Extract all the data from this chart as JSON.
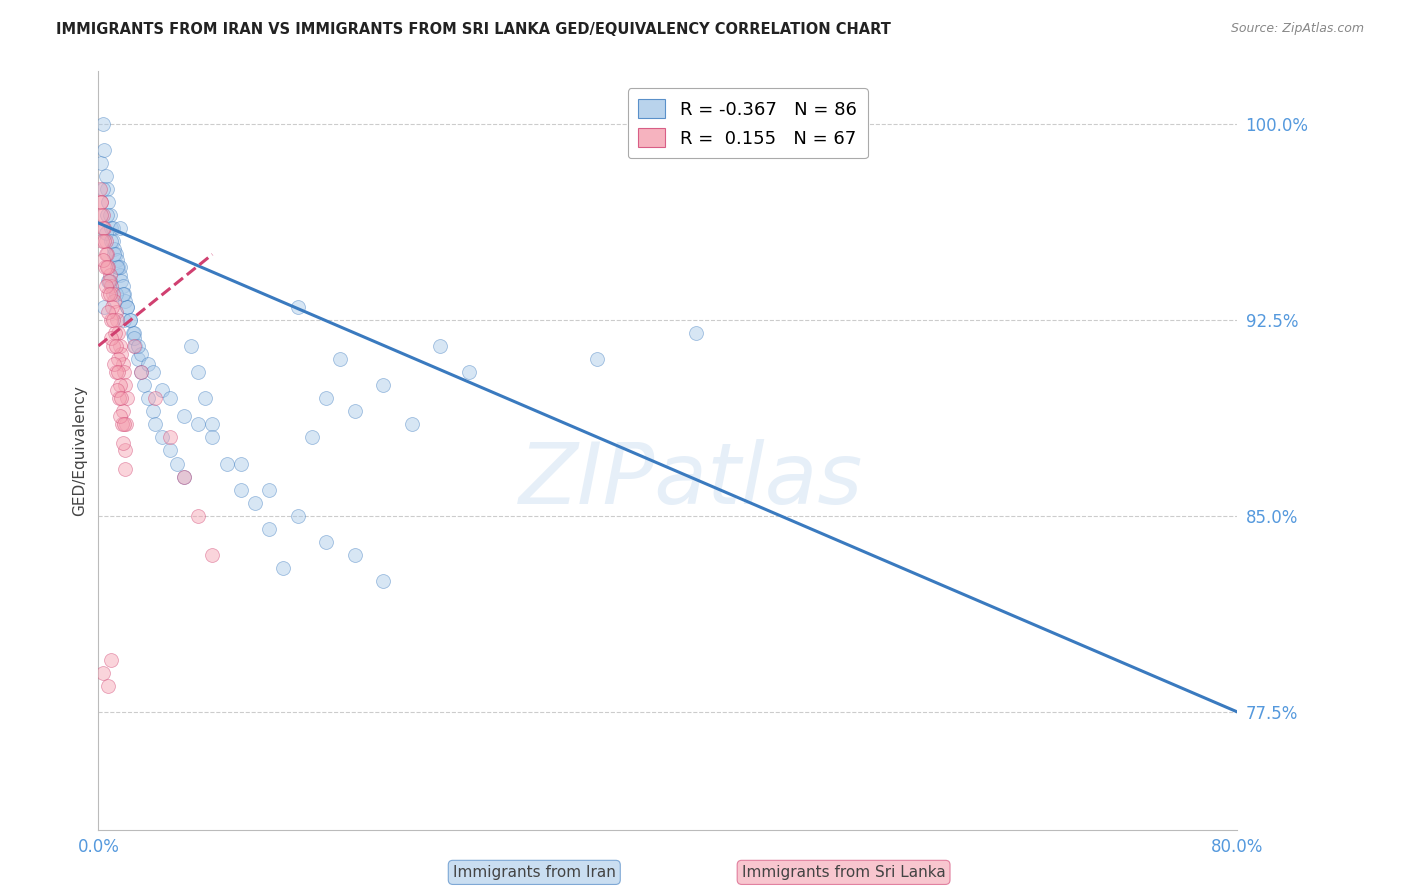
{
  "title": "IMMIGRANTS FROM IRAN VS IMMIGRANTS FROM SRI LANKA GED/EQUIVALENCY CORRELATION CHART",
  "source": "Source: ZipAtlas.com",
  "ylabel": "GED/Equivalency",
  "watermark": "ZIPatlas",
  "xlim": [
    0.0,
    80.0
  ],
  "ylim": [
    73.0,
    102.0
  ],
  "yticks": [
    77.5,
    85.0,
    92.5,
    100.0
  ],
  "ytick_labels": [
    "77.5%",
    "85.0%",
    "92.5%",
    "100.0%"
  ],
  "xticks": [
    0.0,
    10.0,
    20.0,
    30.0,
    40.0,
    50.0,
    60.0,
    70.0,
    80.0
  ],
  "xtick_labels": [
    "0.0%",
    "",
    "",
    "",
    "",
    "",
    "",
    "",
    "80.0%"
  ],
  "legend_iran_r": "-0.367",
  "legend_iran_n": "86",
  "legend_srilanka_r": "0.155",
  "legend_srilanka_n": "67",
  "color_iran": "#a8c8e8",
  "color_srilanka": "#f4a0b0",
  "color_trend_iran": "#3a7abf",
  "color_trend_srilanka": "#d04070",
  "iran_x": [
    0.2,
    0.3,
    0.4,
    0.5,
    0.6,
    0.7,
    0.8,
    0.9,
    1.0,
    1.1,
    1.2,
    1.3,
    1.4,
    1.5,
    1.6,
    1.7,
    1.8,
    1.9,
    2.0,
    2.2,
    2.4,
    2.6,
    2.8,
    3.0,
    3.2,
    3.5,
    3.8,
    4.0,
    4.5,
    5.0,
    5.5,
    6.0,
    6.5,
    7.0,
    7.5,
    8.0,
    9.0,
    10.0,
    11.0,
    12.0,
    13.0,
    14.0,
    15.0,
    16.0,
    17.0,
    18.0,
    20.0,
    22.0,
    24.0,
    26.0,
    1.0,
    1.5,
    2.0,
    2.5,
    3.0,
    0.5,
    0.8,
    1.2,
    1.8,
    2.5,
    3.5,
    4.5,
    6.0,
    8.0,
    10.0,
    12.0,
    14.0,
    16.0,
    18.0,
    20.0,
    0.3,
    0.6,
    0.9,
    1.3,
    1.7,
    2.2,
    2.8,
    3.8,
    5.0,
    7.0,
    35.0,
    42.0,
    0.4,
    0.7,
    1.1,
    1.5
  ],
  "iran_y": [
    98.5,
    100.0,
    99.0,
    98.0,
    97.5,
    97.0,
    96.5,
    96.0,
    95.5,
    95.2,
    95.0,
    94.8,
    94.5,
    94.2,
    94.0,
    93.8,
    93.5,
    93.2,
    93.0,
    92.5,
    92.0,
    91.5,
    91.0,
    90.5,
    90.0,
    89.5,
    89.0,
    88.5,
    88.0,
    87.5,
    87.0,
    86.5,
    91.5,
    90.5,
    89.5,
    88.5,
    87.0,
    86.0,
    85.5,
    84.5,
    83.0,
    93.0,
    88.0,
    89.5,
    91.0,
    89.0,
    90.0,
    88.5,
    91.5,
    90.5,
    96.0,
    94.5,
    93.0,
    92.0,
    91.2,
    95.8,
    94.0,
    93.5,
    92.5,
    91.8,
    90.8,
    89.8,
    88.8,
    88.0,
    87.0,
    86.0,
    85.0,
    84.0,
    83.5,
    82.5,
    97.5,
    96.5,
    95.5,
    94.5,
    93.5,
    92.5,
    91.5,
    90.5,
    89.5,
    88.5,
    91.0,
    92.0,
    93.0,
    94.0,
    95.0,
    96.0
  ],
  "srilanka_x": [
    0.1,
    0.2,
    0.3,
    0.4,
    0.5,
    0.6,
    0.7,
    0.8,
    0.9,
    1.0,
    1.1,
    1.2,
    1.3,
    1.4,
    1.5,
    1.6,
    1.7,
    1.8,
    1.9,
    2.0,
    0.15,
    0.35,
    0.55,
    0.75,
    0.95,
    1.15,
    1.35,
    1.55,
    1.75,
    1.95,
    0.25,
    0.45,
    0.65,
    0.85,
    1.05,
    1.25,
    1.45,
    1.65,
    1.85,
    0.3,
    0.5,
    0.7,
    0.9,
    1.1,
    1.3,
    1.5,
    1.7,
    1.9,
    2.5,
    3.0,
    4.0,
    5.0,
    6.0,
    7.0,
    8.0,
    0.2,
    0.4,
    0.6,
    0.8,
    1.0,
    1.2,
    1.4,
    1.6,
    1.8,
    0.35,
    0.65,
    0.85
  ],
  "srilanka_y": [
    97.5,
    97.0,
    96.5,
    96.0,
    95.5,
    95.0,
    94.5,
    94.2,
    93.8,
    93.5,
    93.2,
    92.8,
    92.5,
    92.0,
    91.5,
    91.2,
    90.8,
    90.5,
    90.0,
    89.5,
    97.0,
    96.0,
    95.0,
    94.0,
    93.0,
    92.0,
    91.0,
    90.0,
    89.0,
    88.5,
    95.5,
    94.5,
    93.5,
    92.5,
    91.5,
    90.5,
    89.5,
    88.5,
    87.5,
    94.8,
    93.8,
    92.8,
    91.8,
    90.8,
    89.8,
    88.8,
    87.8,
    86.8,
    91.5,
    90.5,
    89.5,
    88.0,
    86.5,
    85.0,
    83.5,
    96.5,
    95.5,
    94.5,
    93.5,
    92.5,
    91.5,
    90.5,
    89.5,
    88.5,
    79.0,
    78.5,
    79.5
  ],
  "iran_trend_x": [
    0.0,
    80.0
  ],
  "iran_trend_y": [
    96.2,
    77.5
  ],
  "srilanka_trend_x": [
    0.0,
    8.0
  ],
  "srilanka_trend_y": [
    91.5,
    95.0
  ],
  "background_color": "#ffffff",
  "grid_color": "#cccccc",
  "title_color": "#222222",
  "axis_label_color": "#444444",
  "tick_label_color": "#5599dd",
  "dot_size": 100,
  "dot_alpha": 0.45,
  "trend_linewidth": 2.2
}
